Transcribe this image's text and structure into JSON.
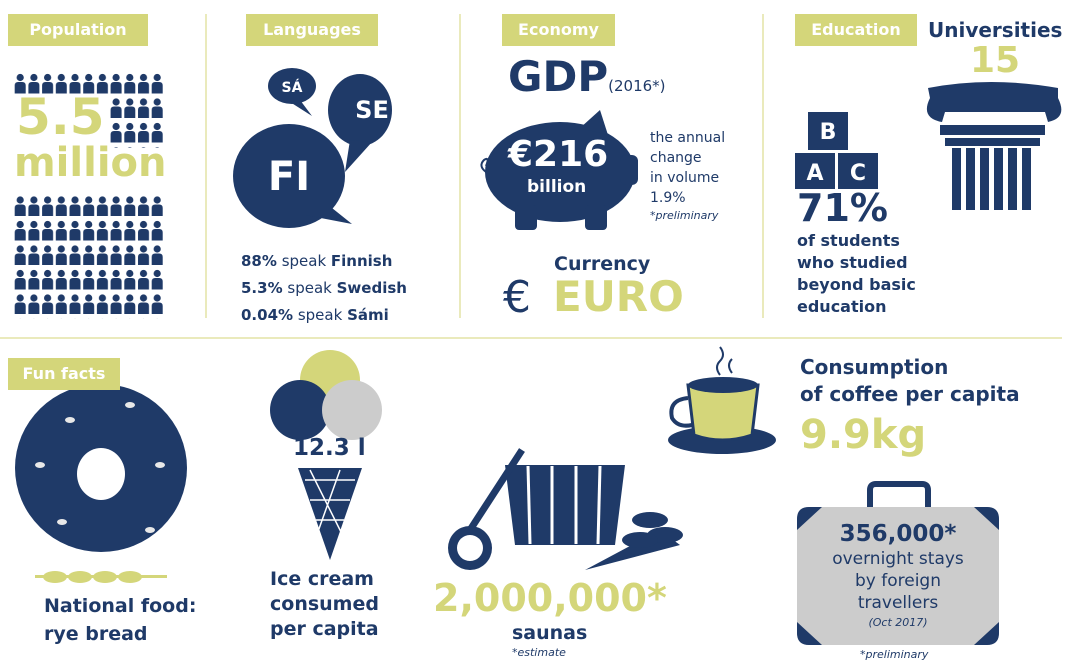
{
  "population": {
    "label": "Population",
    "value": "5.5",
    "unit": "million"
  },
  "languages": {
    "label": "Languages",
    "bubbles": [
      "SÁ",
      "SE",
      "FI"
    ],
    "lines": [
      {
        "share": "88%",
        "verb": "speak",
        "language": "Finnish"
      },
      {
        "share": "5.3%",
        "verb": "speak",
        "language": "Swedish"
      },
      {
        "share": "0.04%",
        "verb": "speak",
        "language": "Sámi"
      }
    ]
  },
  "economy": {
    "label": "Economy",
    "gdp": "GDP",
    "gdp_year": "(2016*)",
    "gdp_value": "€216",
    "gdp_unit": "billion",
    "change": [
      "the annual",
      "change",
      "in volume",
      "1.9%"
    ],
    "note": "*preliminary",
    "currency_label": "Currency",
    "currency_symbol": "€",
    "currency": "EURO"
  },
  "education": {
    "label": "Education",
    "blocks": [
      "B",
      "A",
      "C"
    ],
    "universities_label": "Universities",
    "universities": "15",
    "share": "71%",
    "description": [
      "of students",
      "who studied",
      "beyond basic",
      "education"
    ]
  },
  "fun_facts": {
    "label": "Fun facts",
    "food": [
      "National food:",
      "rye bread"
    ],
    "ice_cream": {
      "value": "12.3 l",
      "text": [
        "Ice cream",
        "consumed",
        "per capita"
      ]
    },
    "saunas": {
      "value": "2,000,000*",
      "label": "saunas",
      "note": "*estimate"
    },
    "coffee": {
      "title": [
        "Consumption",
        "of coffee per capita"
      ],
      "value": "9.9kg"
    },
    "stays": {
      "value": "356,000*",
      "text": [
        "overnight stays",
        "by foreign",
        "travellers"
      ],
      "period": "(Oct 2017)",
      "note": "*preliminary"
    }
  }
}
